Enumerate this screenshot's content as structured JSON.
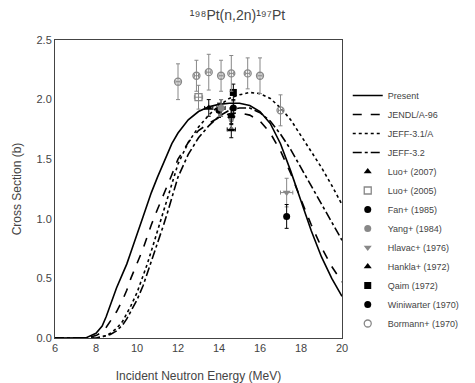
{
  "chart_data": {
    "type": "line",
    "title": "¹⁹⁸Pt(n,2n)¹⁹⁷Pt",
    "xlabel": "Incident Neutron Energy (MeV)",
    "ylabel": "Cross Section (b)",
    "xlim": [
      6,
      20
    ],
    "ylim": [
      0.0,
      2.5
    ],
    "xticks": [
      6,
      8,
      10,
      12,
      14,
      16,
      18,
      20
    ],
    "yticks": [
      {
        "value": 0,
        "label": "0.0"
      },
      0.5,
      {
        "value": 1,
        "label": "1.0"
      },
      1.5,
      {
        "value": 2,
        "label": "2.0"
      },
      2.5
    ],
    "grid": false,
    "legend": "lower right",
    "series": [
      {
        "name": "Present",
        "type": "line",
        "color": "#000000",
        "line_style": "solid",
        "x": [
          6.0,
          6.5,
          7.0,
          7.5,
          8.0,
          8.3,
          8.5,
          8.7,
          9.0,
          9.3,
          9.5,
          9.7,
          10.0,
          10.3,
          10.5,
          10.7,
          11.0,
          11.3,
          11.5,
          11.7,
          12.0,
          12.5,
          13.0,
          13.5,
          14.0,
          14.5,
          15.0,
          15.5,
          16.0,
          16.5,
          17.0,
          17.5,
          18.0,
          18.5,
          19.0,
          19.5,
          20.0
        ],
        "values": [
          0.0,
          0.0,
          0.0,
          0.001,
          0.04,
          0.1,
          0.18,
          0.28,
          0.42,
          0.54,
          0.62,
          0.72,
          0.88,
          1.02,
          1.12,
          1.22,
          1.35,
          1.47,
          1.55,
          1.63,
          1.72,
          1.83,
          1.9,
          1.94,
          1.96,
          1.97,
          1.97,
          1.95,
          1.9,
          1.8,
          1.63,
          1.4,
          1.15,
          0.9,
          0.68,
          0.5,
          0.35
        ]
      },
      {
        "name": "JENDL/A-96",
        "type": "line",
        "color": "#000000",
        "line_style": "dash",
        "x": [
          6.0,
          6.5,
          7.0,
          7.5,
          8.0,
          8.3,
          8.5,
          8.7,
          9.0,
          9.3,
          9.5,
          9.7,
          10.0,
          10.3,
          10.5,
          10.7,
          11.0,
          11.3,
          11.5,
          11.7,
          12.0,
          12.5,
          13.0,
          13.5,
          14.0,
          14.5,
          15.0,
          15.5,
          16.0,
          16.5,
          17.0,
          17.5,
          18.0,
          18.5,
          19.0,
          19.5,
          20.0
        ],
        "values": [
          0.0,
          0.0,
          0.0,
          0.0,
          0.02,
          0.05,
          0.09,
          0.14,
          0.22,
          0.32,
          0.4,
          0.5,
          0.62,
          0.75,
          0.85,
          0.95,
          1.08,
          1.2,
          1.28,
          1.37,
          1.5,
          1.64,
          1.74,
          1.8,
          1.85,
          1.88,
          1.89,
          1.87,
          1.82,
          1.72,
          1.57,
          1.38,
          1.16,
          0.95,
          0.76,
          0.6,
          0.47
        ]
      },
      {
        "name": "JEFF-3.1/A",
        "type": "line",
        "color": "#000000",
        "line_style": "dot",
        "x": [
          6.0,
          6.5,
          7.0,
          7.5,
          8.0,
          8.3,
          8.5,
          8.7,
          9.0,
          9.3,
          9.5,
          9.7,
          10.0,
          10.3,
          10.5,
          10.7,
          11.0,
          11.3,
          11.5,
          11.7,
          12.0,
          12.5,
          13.0,
          13.5,
          14.0,
          14.5,
          15.0,
          15.5,
          16.0,
          16.5,
          17.0,
          17.5,
          18.0,
          18.5,
          19.0,
          19.5,
          20.0
        ],
        "values": [
          0.0,
          0.0,
          0.0,
          0.0,
          0.0,
          0.01,
          0.02,
          0.04,
          0.08,
          0.14,
          0.2,
          0.27,
          0.38,
          0.52,
          0.62,
          0.73,
          0.9,
          1.06,
          1.17,
          1.28,
          1.46,
          1.64,
          1.77,
          1.87,
          1.95,
          2.01,
          2.04,
          2.06,
          2.05,
          2.01,
          1.93,
          1.83,
          1.7,
          1.57,
          1.43,
          1.28,
          1.12
        ]
      },
      {
        "name": "JEFF-3.2",
        "type": "line",
        "color": "#000000",
        "line_style": "dashdot",
        "x": [
          6.0,
          6.5,
          7.0,
          7.5,
          8.0,
          8.3,
          8.5,
          8.7,
          9.0,
          9.3,
          9.5,
          9.7,
          10.0,
          10.3,
          10.5,
          10.7,
          11.0,
          11.3,
          11.5,
          11.7,
          12.0,
          12.5,
          13.0,
          13.5,
          14.0,
          14.5,
          15.0,
          15.5,
          16.0,
          16.5,
          17.0,
          17.5,
          18.0,
          18.5,
          19.0,
          19.5,
          20.0
        ],
        "values": [
          0.0,
          0.0,
          0.0,
          0.0,
          0.0,
          0.01,
          0.02,
          0.03,
          0.06,
          0.11,
          0.16,
          0.22,
          0.32,
          0.44,
          0.54,
          0.64,
          0.8,
          0.95,
          1.06,
          1.17,
          1.35,
          1.54,
          1.68,
          1.78,
          1.86,
          1.91,
          1.93,
          1.93,
          1.89,
          1.82,
          1.71,
          1.58,
          1.43,
          1.28,
          1.12,
          0.97,
          0.82
        ]
      },
      {
        "name": "Luo+ (2007)",
        "type": "scatter",
        "color": "#000000",
        "marker": "triangle-up",
        "x": [
          13.5,
          14.1,
          14.6
        ],
        "values": [
          1.93,
          1.93,
          1.75
        ],
        "yerr": [
          0.07,
          0.07,
          0.07
        ],
        "xerr": [
          0.2,
          0.2,
          0.2
        ]
      },
      {
        "name": "Luo+ (2005)",
        "type": "scatter",
        "color": "#888888",
        "marker": "square-open",
        "x": [
          13.0
        ],
        "values": [
          2.02
        ],
        "yerr": [
          0.1
        ],
        "xerr": [
          0.2
        ]
      },
      {
        "name": "Fan+ (1985)",
        "type": "scatter",
        "color": "#000000",
        "marker": "circle",
        "x": [
          14.0,
          14.6
        ],
        "values": [
          1.91,
          1.86
        ],
        "yerr": [
          0.06,
          0.06
        ],
        "xerr": [
          0.1,
          0.1
        ]
      },
      {
        "name": "Yang+ (1984)",
        "type": "scatter",
        "color": "#888888",
        "marker": "circle",
        "x": [
          14.1
        ],
        "values": [
          1.93
        ],
        "yerr": [
          0.07
        ],
        "xerr": [
          0.1
        ]
      },
      {
        "name": "Hlavac+ (1976)",
        "type": "scatter",
        "color": "#888888",
        "marker": "triangle-down",
        "x": [
          14.6,
          17.3
        ],
        "values": [
          1.84,
          1.22
        ],
        "yerr": [
          0.08,
          0.12
        ],
        "xerr": [
          0.1,
          0.3
        ]
      },
      {
        "name": "Hankla+ (1972)",
        "type": "scatter",
        "color": "#000000",
        "marker": "triangle-up",
        "x": [
          14.6
        ],
        "values": [
          1.86
        ],
        "yerr": [
          0.07
        ],
        "xerr": [
          0.1
        ]
      },
      {
        "name": "Qaim (1972)",
        "type": "scatter",
        "color": "#000000",
        "marker": "square",
        "x": [
          14.7
        ],
        "values": [
          2.06
        ],
        "yerr": [
          0.07
        ],
        "xerr": [
          0.1
        ]
      },
      {
        "name": "Winiwarter (1970)",
        "type": "scatter",
        "color": "#000000",
        "marker": "circle",
        "x": [
          14.7,
          17.3
        ],
        "values": [
          1.93,
          1.02
        ],
        "yerr": [
          0.07,
          0.1
        ],
        "xerr": [
          0.1,
          0.1
        ]
      },
      {
        "name": "Bormann+ (1970)",
        "type": "scatter",
        "color": "#888888",
        "marker": "circle-open",
        "x": [
          12.0,
          12.9,
          13.5,
          14.1,
          14.6,
          15.4,
          16.0,
          17.0
        ],
        "values": [
          2.15,
          2.2,
          2.23,
          2.2,
          2.22,
          2.22,
          2.2,
          1.91
        ],
        "yerr": [
          0.15,
          0.13,
          0.15,
          0.13,
          0.15,
          0.13,
          0.15,
          0.13
        ],
        "xerr": [
          0.1,
          0.1,
          0.1,
          0.1,
          0.1,
          0.1,
          0.1,
          0.1
        ]
      }
    ]
  }
}
